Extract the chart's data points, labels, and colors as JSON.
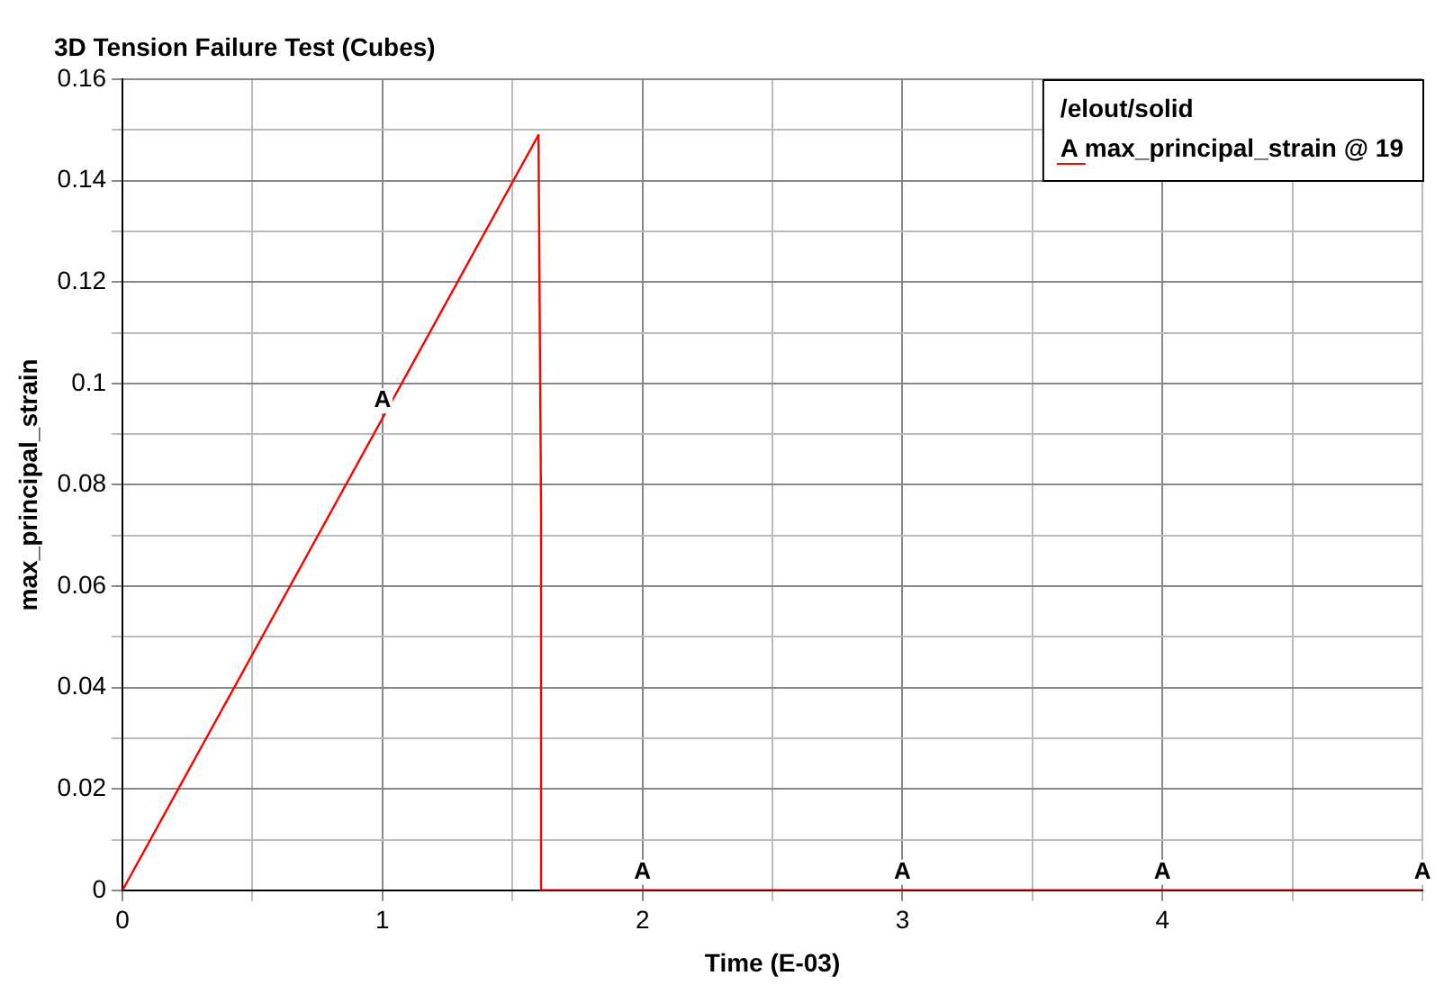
{
  "chart_data": {
    "type": "line",
    "title": "3D Tension Failure Test (Cubes)",
    "xlabel": "Time (E-03)",
    "ylabel": "max_principal_strain",
    "legend_title": "/elout/solid",
    "legend": "top right",
    "grid": true,
    "marker": "none",
    "line_style": "solid",
    "xlim": [
      0,
      5
    ],
    "xticks": [
      0,
      {
        "value": 0.5,
        "label": null
      },
      1,
      {
        "value": 1.5,
        "label": null
      },
      2,
      {
        "value": 2.5,
        "label": null
      },
      3,
      {
        "value": 3.5,
        "label": null
      },
      4,
      {
        "value": 4.5,
        "label": null
      },
      {
        "value": 5,
        "label": null
      }
    ],
    "ylim": [
      0,
      0.16
    ],
    "yticks": [
      0,
      {
        "value": 0.01,
        "label": null
      },
      0.02,
      {
        "value": 0.03,
        "label": null
      },
      0.04,
      {
        "value": 0.05,
        "label": null
      },
      0.06,
      {
        "value": 0.07,
        "label": null
      },
      0.08,
      {
        "value": 0.09,
        "label": null
      },
      0.1,
      {
        "value": 0.11,
        "label": null
      },
      0.12,
      {
        "value": 0.13,
        "label": null
      },
      0.14,
      {
        "value": 0.15,
        "label": null
      },
      0.16
    ],
    "series": [
      {
        "name": "A max_principal_strain @ 19",
        "color": "#ff0000",
        "x": [
          0,
          1.6,
          1.61,
          1.61,
          5
        ],
        "values": [
          0,
          0.149,
          0.074,
          0,
          0
        ]
      }
    ],
    "annotations": [
      {
        "text": "A",
        "x": 1,
        "y": 0.093
      },
      {
        "text": "A",
        "x": 2,
        "y": 0
      },
      {
        "text": "A",
        "x": 3,
        "y": 0
      },
      {
        "text": "A",
        "x": 4,
        "y": 0
      },
      {
        "text": "A",
        "x": 5,
        "y": 0
      }
    ]
  }
}
